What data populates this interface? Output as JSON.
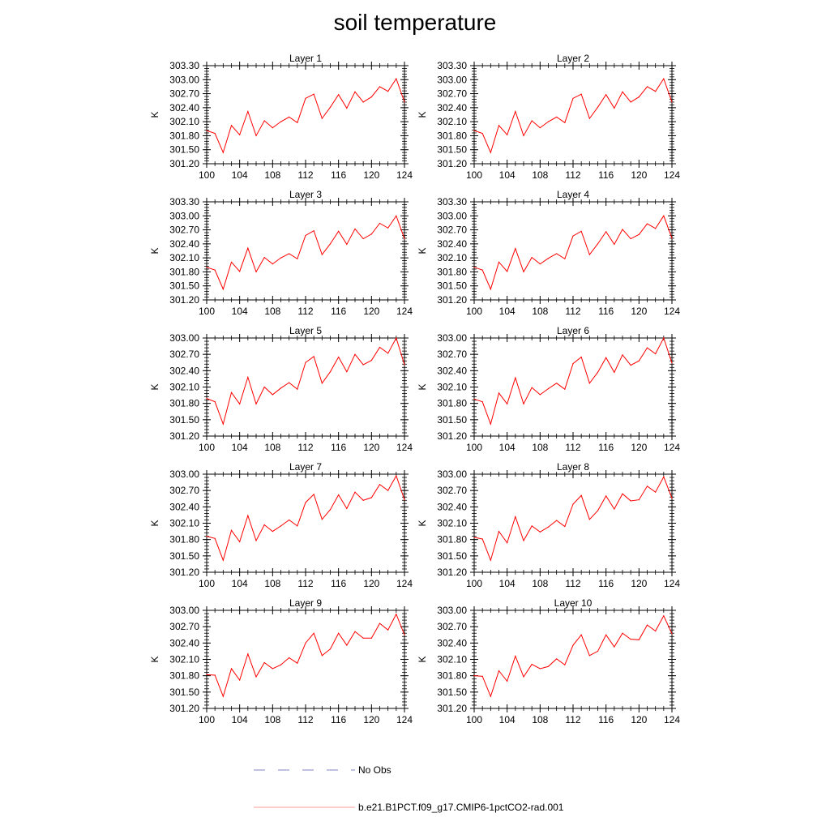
{
  "page_title": "soil temperature",
  "chart_data": {
    "type": "line",
    "xlabel": "",
    "ylabel": "K",
    "x_ticks": [
      100,
      104,
      108,
      112,
      116,
      120,
      124
    ],
    "xlim": [
      100,
      124
    ],
    "grid": false,
    "legend_placement": "bottom",
    "legend": [
      {
        "label": "No Obs",
        "color": "#8080c0",
        "style": "dashed"
      },
      {
        "label": "b.e21.B1PCT.f09_g17.CMIP6-1pctCO2-rad.001",
        "color": "#ff0000",
        "style": "solid"
      }
    ],
    "x": [
      100,
      101,
      102,
      103,
      104,
      105,
      106,
      107,
      108,
      109,
      110,
      111,
      112,
      113,
      114,
      115,
      116,
      117,
      118,
      119,
      120,
      121,
      122,
      123,
      124
    ],
    "panels": [
      {
        "title": "Layer 1",
        "ylim": [
          301.2,
          303.3
        ],
        "y_ticks": [
          "303.30",
          "303.00",
          "302.70",
          "302.40",
          "302.10",
          "301.80",
          "301.50",
          "301.20"
        ],
        "values": [
          301.91,
          301.85,
          301.44,
          302.02,
          301.82,
          302.32,
          301.8,
          302.12,
          301.97,
          302.1,
          302.2,
          302.08,
          302.6,
          302.69,
          302.17,
          302.41,
          302.68,
          302.39,
          302.74,
          302.52,
          302.63,
          302.85,
          302.75,
          303.02,
          302.52
        ]
      },
      {
        "title": "Layer 2",
        "ylim": [
          301.2,
          303.3
        ],
        "y_ticks": [
          "303.30",
          "303.00",
          "302.70",
          "302.40",
          "302.10",
          "301.80",
          "301.50",
          "301.20"
        ],
        "values": [
          301.91,
          301.85,
          301.44,
          302.02,
          301.82,
          302.32,
          301.8,
          302.12,
          301.97,
          302.1,
          302.2,
          302.08,
          302.6,
          302.69,
          302.17,
          302.41,
          302.68,
          302.39,
          302.74,
          302.52,
          302.63,
          302.85,
          302.75,
          303.02,
          302.52
        ]
      },
      {
        "title": "Layer 3",
        "ylim": [
          301.2,
          303.3
        ],
        "y_ticks": [
          "303.30",
          "303.00",
          "302.70",
          "302.40",
          "302.10",
          "301.80",
          "301.50",
          "301.20"
        ],
        "values": [
          301.9,
          301.84,
          301.43,
          302.01,
          301.81,
          302.31,
          301.8,
          302.11,
          301.97,
          302.1,
          302.19,
          302.08,
          302.58,
          302.68,
          302.17,
          302.4,
          302.67,
          302.39,
          302.72,
          302.51,
          302.61,
          302.84,
          302.74,
          303.0,
          302.51
        ]
      },
      {
        "title": "Layer 4",
        "ylim": [
          301.2,
          303.3
        ],
        "y_ticks": [
          "303.30",
          "303.00",
          "302.70",
          "302.40",
          "302.10",
          "301.80",
          "301.50",
          "301.20"
        ],
        "values": [
          301.9,
          301.84,
          301.43,
          302.01,
          301.81,
          302.3,
          301.8,
          302.11,
          301.97,
          302.09,
          302.19,
          302.08,
          302.57,
          302.67,
          302.17,
          302.4,
          302.66,
          302.39,
          302.71,
          302.51,
          302.6,
          302.83,
          302.73,
          303.0,
          302.52
        ]
      },
      {
        "title": "Layer 5",
        "ylim": [
          301.2,
          303.0
        ],
        "y_ticks": [
          "303.00",
          "302.70",
          "302.40",
          "302.10",
          "301.80",
          "301.50",
          "301.20"
        ],
        "values": [
          301.89,
          301.83,
          301.42,
          302.0,
          301.79,
          302.28,
          301.79,
          302.1,
          301.96,
          302.08,
          302.18,
          302.06,
          302.55,
          302.66,
          302.17,
          302.38,
          302.65,
          302.38,
          302.7,
          302.51,
          302.59,
          302.83,
          302.72,
          303.0,
          302.51
        ]
      },
      {
        "title": "Layer 6",
        "ylim": [
          301.2,
          303.0
        ],
        "y_ticks": [
          "303.00",
          "302.70",
          "302.40",
          "302.10",
          "301.80",
          "301.50",
          "301.20"
        ],
        "values": [
          301.88,
          301.83,
          301.42,
          301.99,
          301.79,
          302.27,
          301.79,
          302.09,
          301.96,
          302.07,
          302.17,
          302.06,
          302.53,
          302.65,
          302.17,
          302.37,
          302.64,
          302.37,
          302.69,
          302.5,
          302.58,
          302.82,
          302.71,
          303.0,
          302.54
        ]
      },
      {
        "title": "Layer 7",
        "ylim": [
          301.2,
          303.0
        ],
        "y_ticks": [
          "303.00",
          "302.70",
          "302.40",
          "302.10",
          "301.80",
          "301.50",
          "301.20"
        ],
        "values": [
          301.86,
          301.82,
          301.42,
          301.97,
          301.76,
          302.24,
          301.78,
          302.07,
          301.95,
          302.05,
          302.16,
          302.05,
          302.48,
          302.63,
          302.17,
          302.35,
          302.62,
          302.37,
          302.67,
          302.52,
          302.57,
          302.81,
          302.7,
          302.97,
          302.53
        ]
      },
      {
        "title": "Layer 8",
        "ylim": [
          301.2,
          303.0
        ],
        "y_ticks": [
          "303.00",
          "302.70",
          "302.40",
          "302.10",
          "301.80",
          "301.50",
          "301.20"
        ],
        "values": [
          301.84,
          301.81,
          301.42,
          301.95,
          301.74,
          302.22,
          301.78,
          302.05,
          301.94,
          302.03,
          302.15,
          302.04,
          302.45,
          302.61,
          302.17,
          302.33,
          302.6,
          302.36,
          302.64,
          302.51,
          302.53,
          302.78,
          302.67,
          302.95,
          302.56
        ]
      },
      {
        "title": "Layer 9",
        "ylim": [
          301.2,
          303.0
        ],
        "y_ticks": [
          "303.00",
          "302.70",
          "302.40",
          "302.10",
          "301.80",
          "301.50",
          "301.20"
        ],
        "values": [
          301.82,
          301.81,
          301.42,
          301.93,
          301.72,
          302.2,
          301.78,
          302.04,
          301.93,
          302.0,
          302.13,
          302.03,
          302.4,
          302.58,
          302.17,
          302.29,
          302.58,
          302.36,
          302.61,
          302.49,
          302.49,
          302.76,
          302.64,
          302.93,
          302.55
        ]
      },
      {
        "title": "Layer 10",
        "ylim": [
          301.2,
          303.0
        ],
        "y_ticks": [
          "303.00",
          "302.70",
          "302.40",
          "302.10",
          "301.80",
          "301.50",
          "301.20"
        ],
        "values": [
          301.8,
          301.79,
          301.42,
          301.89,
          301.7,
          302.16,
          301.78,
          302.01,
          301.93,
          301.97,
          302.11,
          302.0,
          302.36,
          302.55,
          302.17,
          302.25,
          302.55,
          302.33,
          302.58,
          302.47,
          302.46,
          302.73,
          302.62,
          302.9,
          302.57
        ]
      }
    ]
  }
}
